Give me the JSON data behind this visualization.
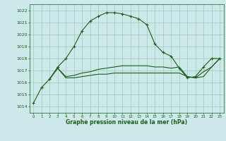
{
  "xlabel": "Graphe pression niveau de la mer (hPa)",
  "background_color": "#cce8e8",
  "grid_color": "#99ccbb",
  "line_color": "#1a5e1a",
  "ylim": [
    1013.5,
    1022.5
  ],
  "xlim": [
    -0.5,
    23.5
  ],
  "yticks": [
    1014,
    1015,
    1016,
    1017,
    1018,
    1019,
    1020,
    1021,
    1022
  ],
  "xticks": [
    0,
    1,
    2,
    3,
    4,
    5,
    6,
    7,
    8,
    9,
    10,
    11,
    12,
    13,
    14,
    15,
    16,
    17,
    18,
    19,
    20,
    21,
    22,
    23
  ],
  "series1_x": [
    0,
    1,
    2,
    3,
    4,
    5,
    6,
    7,
    8,
    9,
    10,
    11,
    12,
    13,
    14,
    15,
    16,
    17,
    18,
    19,
    20,
    21,
    22,
    23
  ],
  "series1_y": [
    1014.3,
    1015.6,
    1016.3,
    1017.3,
    1018.0,
    1019.0,
    1020.3,
    1021.1,
    1021.5,
    1021.8,
    1021.8,
    1021.7,
    1021.5,
    1021.3,
    1020.8,
    1019.2,
    1018.5,
    1018.2,
    1017.2,
    1016.4,
    1016.5,
    1017.3,
    1018.0,
    1018.0
  ],
  "series2_x": [
    2,
    3,
    4,
    5,
    6,
    7,
    8,
    9,
    10,
    11,
    12,
    13,
    14,
    15,
    16,
    17,
    18,
    19,
    20,
    21,
    22,
    23
  ],
  "series2_y": [
    1016.3,
    1017.2,
    1016.4,
    1016.4,
    1016.5,
    1016.6,
    1016.7,
    1016.7,
    1016.8,
    1016.8,
    1016.8,
    1016.8,
    1016.8,
    1016.8,
    1016.8,
    1016.8,
    1016.8,
    1016.5,
    1016.4,
    1016.5,
    1017.3,
    1018.0
  ],
  "series3_x": [
    2,
    3,
    4,
    5,
    6,
    7,
    8,
    9,
    10,
    11,
    12,
    13,
    14,
    15,
    16,
    17,
    18,
    19,
    20,
    21,
    22,
    23
  ],
  "series3_y": [
    1016.3,
    1017.2,
    1016.5,
    1016.6,
    1016.8,
    1016.9,
    1017.1,
    1017.2,
    1017.3,
    1017.4,
    1017.4,
    1017.4,
    1017.4,
    1017.3,
    1017.3,
    1017.2,
    1017.3,
    1016.5,
    1016.4,
    1016.9,
    1017.3,
    1018.0
  ]
}
